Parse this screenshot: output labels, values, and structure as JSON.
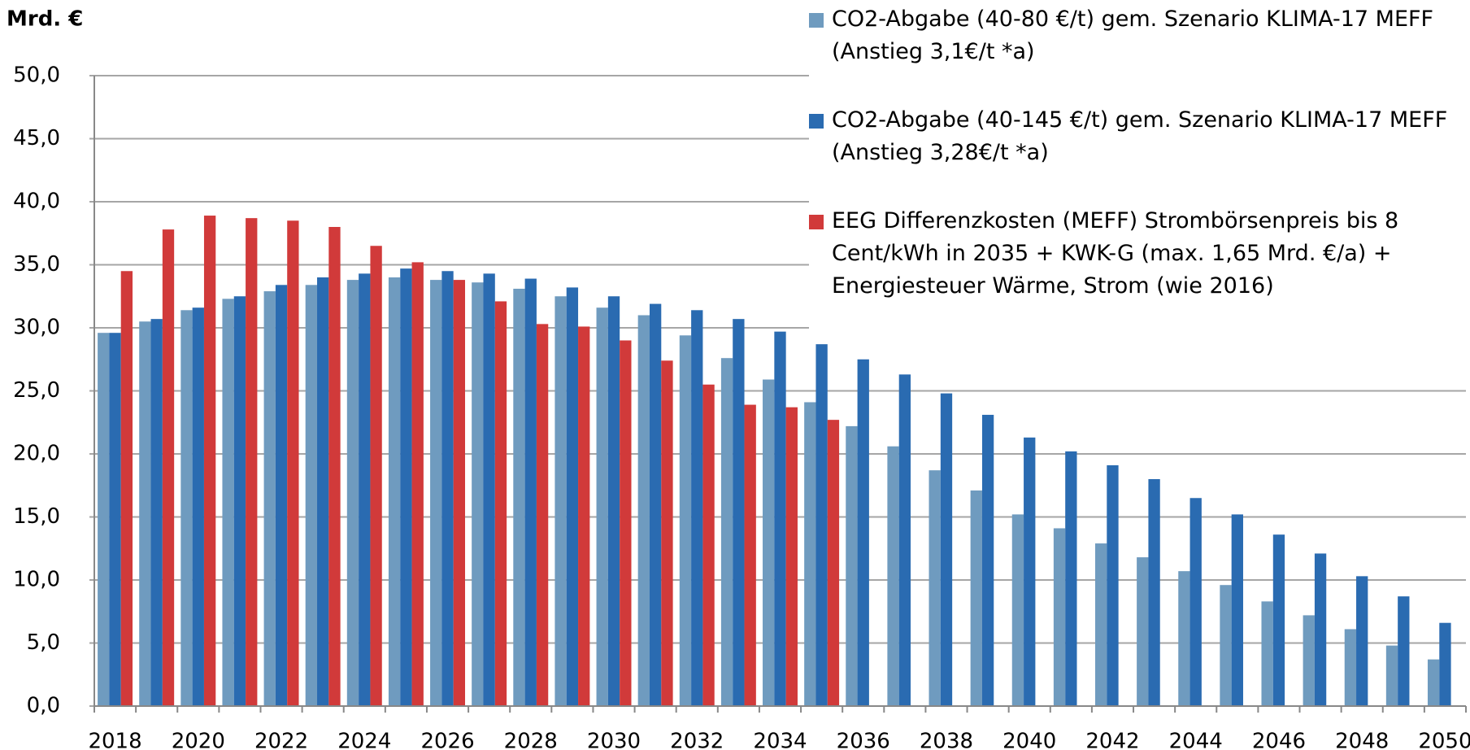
{
  "chart_data": {
    "type": "bar",
    "y_label": "Mrd. €",
    "categories": [
      "2018",
      null,
      "2020",
      null,
      "2022",
      null,
      "2024",
      null,
      "2026",
      null,
      "2028",
      null,
      "2030",
      null,
      "2032",
      null,
      "2034",
      null,
      "2036",
      null,
      "2038",
      null,
      "2040",
      null,
      "2042",
      null,
      "2044",
      null,
      "2046",
      null,
      "2048",
      null,
      "2050"
    ],
    "series": [
      {
        "name": "CO2-Abgabe (40-80 €/t) gem. Szenario KLIMA-17 MEFF (Anstieg 3,1€/t *a)",
        "color": "#6f9bbf",
        "values": [
          29.6,
          30.5,
          31.4,
          32.3,
          32.9,
          33.4,
          33.8,
          34.0,
          33.8,
          33.6,
          33.1,
          32.5,
          31.6,
          31.0,
          29.4,
          27.6,
          25.9,
          24.1,
          22.2,
          20.6,
          18.7,
          17.1,
          15.2,
          14.1,
          12.9,
          11.8,
          10.7,
          9.6,
          8.3,
          7.2,
          6.1,
          4.8,
          3.7
        ]
      },
      {
        "name": "CO2-Abgabe (40-145 €/t) gem. Szenario KLIMA-17 MEFF (Anstieg 3,28€/t *a)",
        "color": "#2a6bb1",
        "values": [
          29.6,
          30.7,
          31.6,
          32.5,
          33.4,
          34.0,
          34.3,
          34.7,
          34.5,
          34.3,
          33.9,
          33.2,
          32.5,
          31.9,
          31.4,
          30.7,
          29.7,
          28.7,
          27.5,
          26.3,
          24.8,
          23.1,
          21.3,
          20.2,
          19.1,
          18.0,
          16.5,
          15.2,
          13.6,
          12.1,
          10.3,
          8.7,
          6.6
        ]
      },
      {
        "name": "EEG Differenzkosten (MEFF) Strombörsenpreis bis 8 Cent/kWh in 2035 + KWK-G (max. 1,65 Mrd. €/a) + Energiesteuer Wärme, Strom (wie 2016)",
        "color": "#d13a3a",
        "values": [
          34.5,
          37.8,
          38.9,
          38.7,
          38.5,
          38.0,
          36.5,
          35.2,
          33.8,
          32.1,
          30.3,
          30.1,
          29.0,
          27.4,
          25.5,
          23.9,
          23.7,
          22.7,
          null,
          null,
          null,
          null,
          null,
          null,
          null,
          null,
          null,
          null,
          null,
          null,
          null,
          null,
          null
        ]
      }
    ],
    "ylim": [
      0,
      50
    ],
    "yticks": [
      {
        "value": 0,
        "label": "0,0"
      },
      {
        "value": 5,
        "label": "5,0"
      },
      {
        "value": 10,
        "label": "10,0"
      },
      {
        "value": 15,
        "label": "15,0"
      },
      {
        "value": 20,
        "label": "20,0"
      },
      {
        "value": 25,
        "label": "25,0"
      },
      {
        "value": 30,
        "label": "30,0"
      },
      {
        "value": 35,
        "label": "35,0"
      },
      {
        "value": 40,
        "label": "40,0"
      },
      {
        "value": 45,
        "label": "45,0"
      },
      {
        "value": 50,
        "label": "50,0"
      }
    ],
    "grid": true
  }
}
